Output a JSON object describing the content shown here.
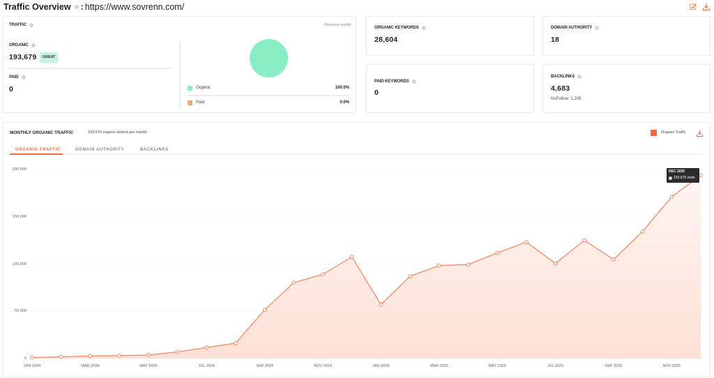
{
  "header": {
    "title": "Traffic Overview",
    "colon": ":",
    "url": "https://www.sovrenn.com/",
    "icons": [
      "edit-icon",
      "download-icon"
    ]
  },
  "traffic_card": {
    "label": "TRAFFIC",
    "period": "Previous month",
    "organic": {
      "label": "ORGANIC",
      "value": "193,679",
      "badge": "GREAT"
    },
    "paid": {
      "label": "PAID",
      "value": "0"
    },
    "legend": [
      {
        "label": "Organic",
        "value": "100.0%",
        "color": "#8aeec5"
      },
      {
        "label": "Paid",
        "value": "0.0%",
        "color": "#f5a07e"
      }
    ]
  },
  "stats": {
    "organic_keywords": {
      "label": "ORGANIC KEYWORDS",
      "value": "28,604"
    },
    "domain_authority": {
      "label": "DOMAIN AUTHORITY",
      "value": "18"
    },
    "paid_keywords": {
      "label": "PAID KEYWORDS",
      "value": "0"
    },
    "backlinks": {
      "label": "BACKLINKS",
      "value": "4,683",
      "sub": "NoFollow: 1,209"
    }
  },
  "chart_card": {
    "title": "MONTHLY ORGANIC TRAFFIC",
    "subtitle": "193,679 organic visitors per month",
    "legend_label": "Organic Traffic",
    "tabs": [
      {
        "label": "ORGANIC TRAFFIC",
        "active": true
      },
      {
        "label": "DOMAIN AUTHORITY",
        "active": false
      },
      {
        "label": "BACKLINKS",
        "active": false
      }
    ],
    "tooltip": {
      "title": "DEC 2025",
      "value": "193,679 visits"
    }
  },
  "colors": {
    "accent": "#ef6c3f",
    "line": "#f28a66",
    "fill": "#fde1d7",
    "organic": "#8aeec5",
    "paid": "#f5a07e"
  },
  "chart_data": [
    {
      "type": "pie",
      "title": "Traffic (Previous month)",
      "categories": [
        "Organic",
        "Paid"
      ],
      "values": [
        100.0,
        0.0
      ]
    },
    {
      "type": "area",
      "title": "MONTHLY ORGANIC TRAFFIC",
      "subtitle": "193,679 organic visitors per month",
      "xlabel": "",
      "ylabel": "",
      "ylim": [
        0,
        200000
      ],
      "yticks": [
        0,
        50000,
        100000,
        150000,
        200000
      ],
      "ytick_labels": [
        "0",
        "50,000",
        "100,000",
        "150,000",
        "200,000"
      ],
      "grid": true,
      "legend": {
        "position": "top-right",
        "entries": [
          "Organic Traffic"
        ]
      },
      "categories": [
        "JAN 2024",
        "FEB 2024",
        "MAR 2024",
        "APR 2024",
        "MAY 2024",
        "JUN 2024",
        "JUL 2024",
        "AUG 2024",
        "SEP 2024",
        "OCT 2024",
        "NOV 2024",
        "DEC 2024",
        "JAN 2025",
        "FEB 2025",
        "MAR 2025",
        "APR 2025",
        "MAY 2025",
        "JUN 2025",
        "JUL 2025",
        "AUG 2025",
        "SEP 2025",
        "OCT 2025",
        "NOV 2025",
        "DEC 2025"
      ],
      "xtick_labels": [
        "JAN 2024",
        "MAR 2024",
        "MAY 2024",
        "JUL 2024",
        "SEP 2024",
        "NOV 2024",
        "JAN 2025",
        "MAR 2025",
        "MAY 2025",
        "JUL 2025",
        "SEP 2025",
        "NOV 2025"
      ],
      "series": [
        {
          "name": "Organic Traffic",
          "values": [
            1000,
            1700,
            2700,
            3000,
            3700,
            6900,
            11600,
            16200,
            51400,
            80200,
            89000,
            107500,
            57000,
            87000,
            98400,
            99400,
            111700,
            123200,
            100600,
            125000,
            104800,
            134500,
            171200,
            193679
          ]
        }
      ],
      "annotations": [
        {
          "x": "DEC 2025",
          "text": "DEC 2025 — 193,679 visits"
        }
      ]
    }
  ]
}
